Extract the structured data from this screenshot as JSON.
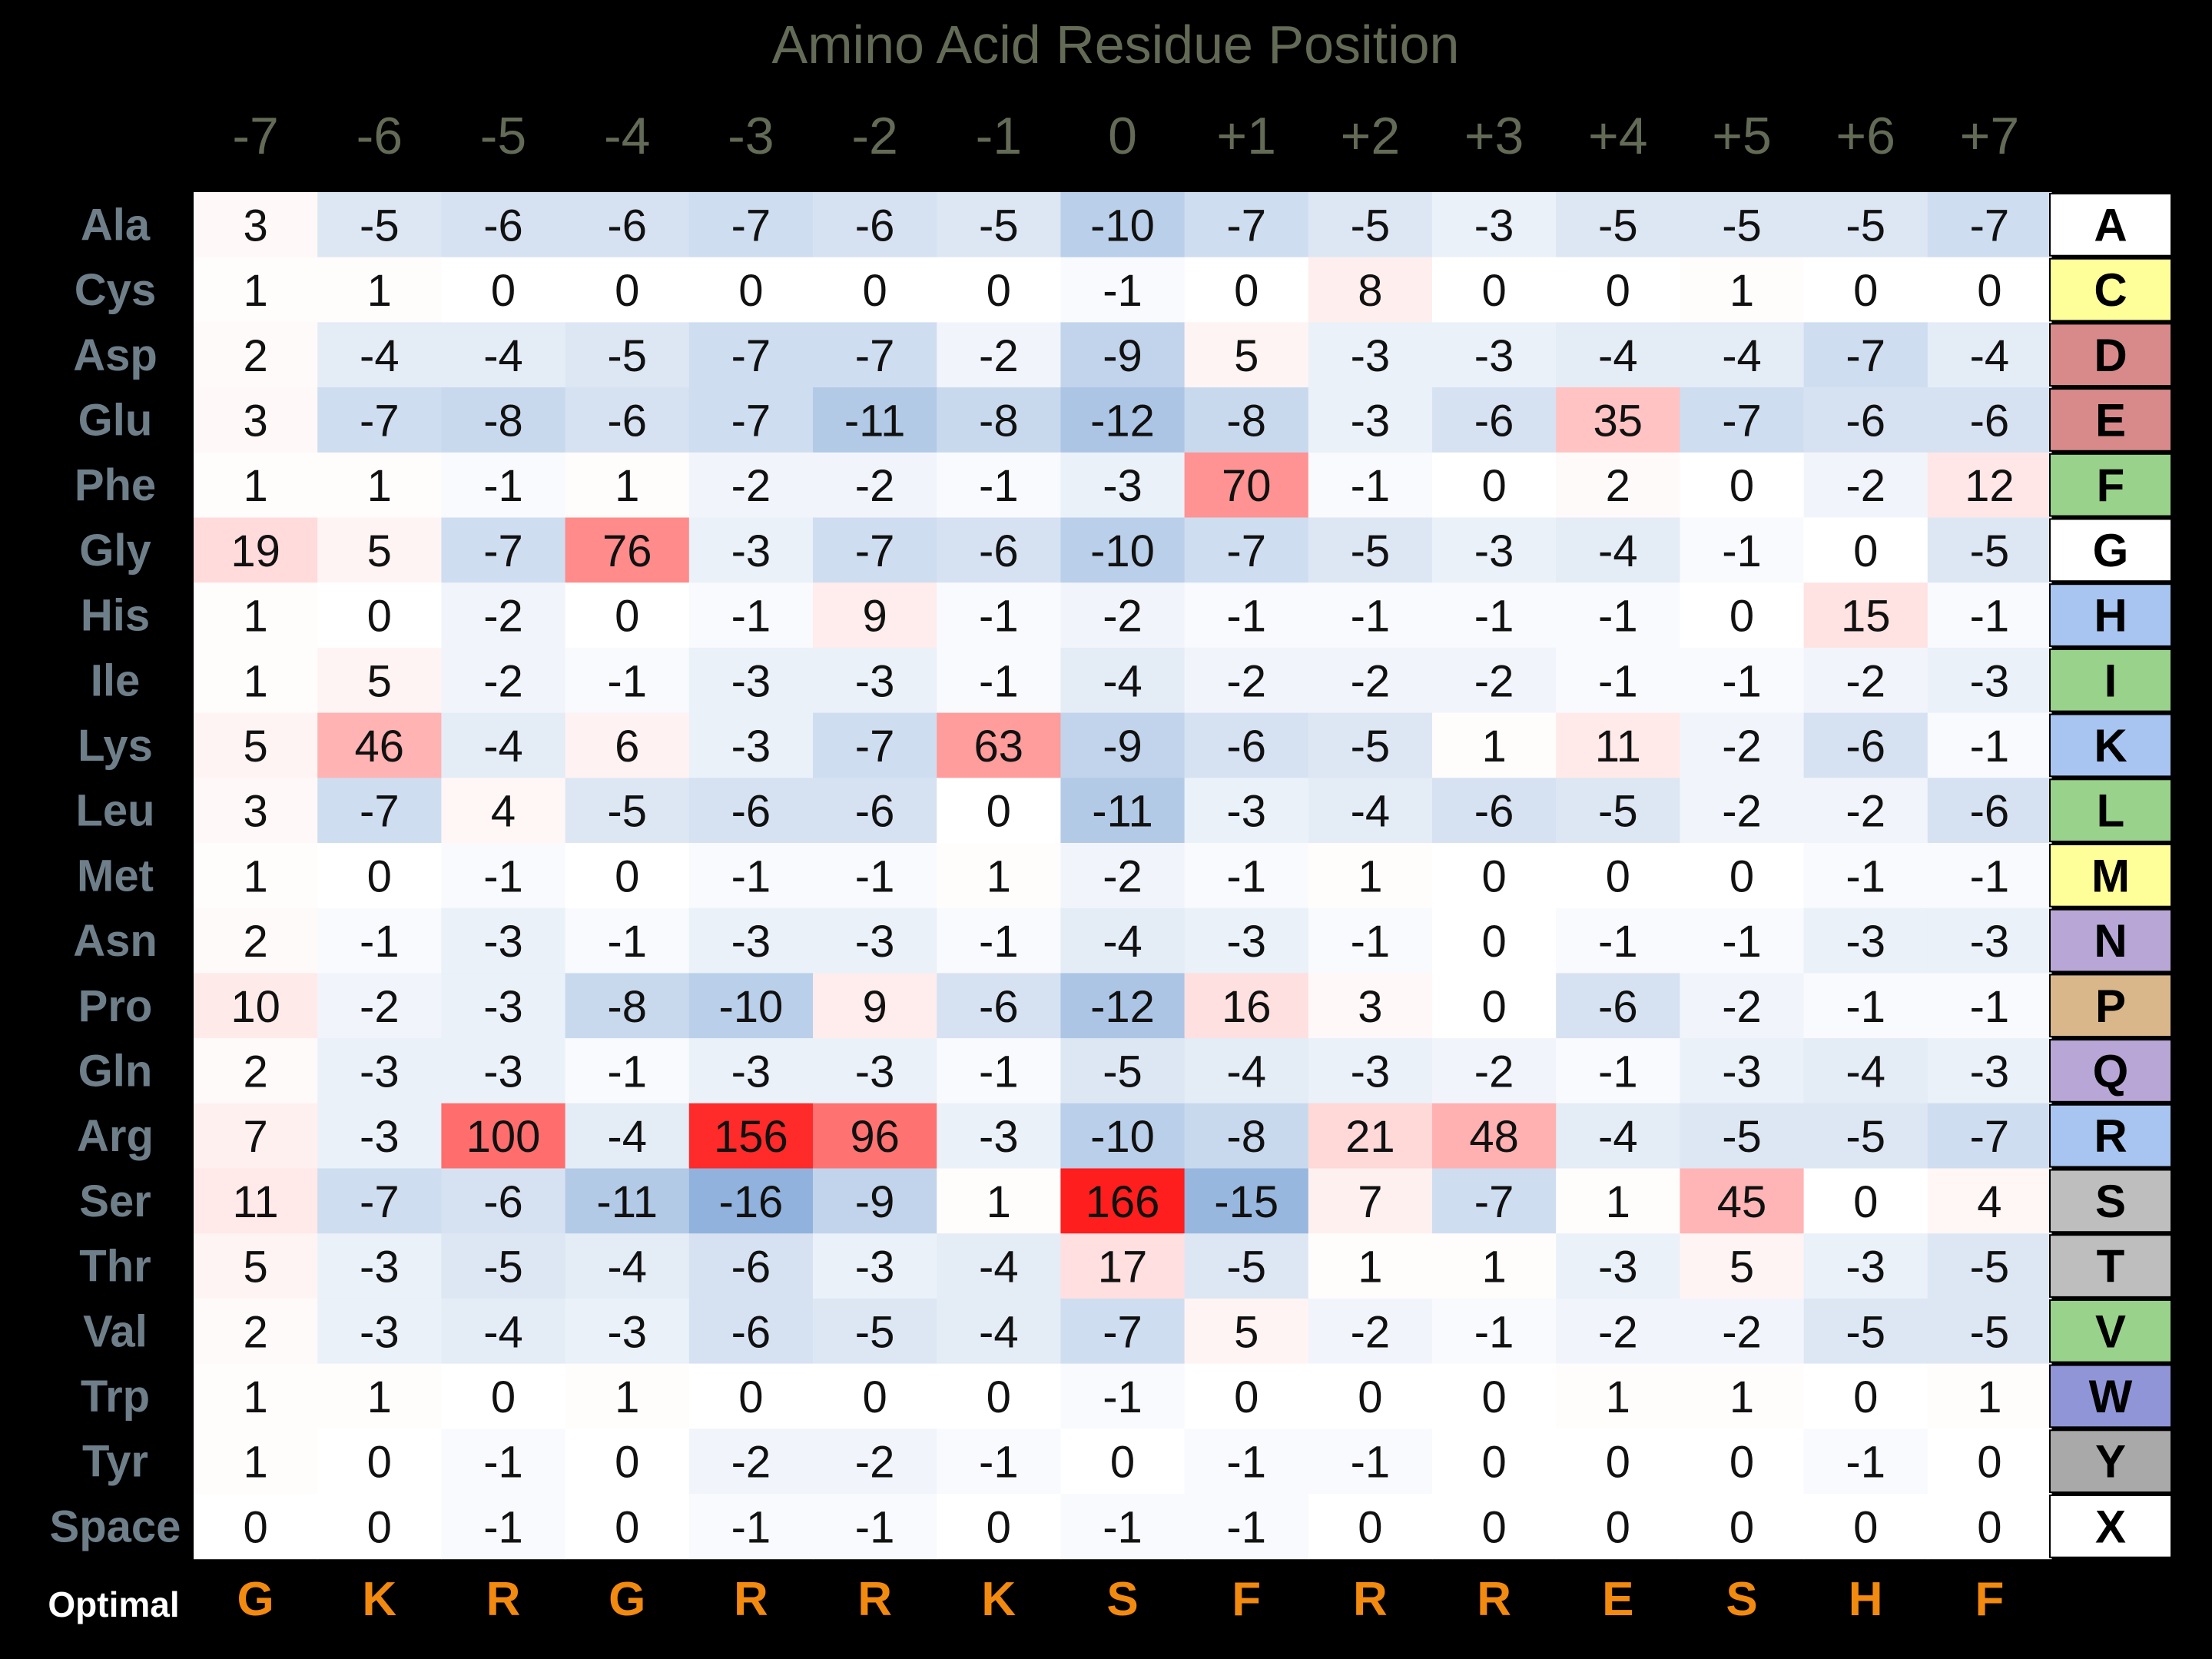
{
  "chart_data": {
    "type": "heatmap",
    "title": "Amino Acid Residue Position",
    "columns": [
      "-7",
      "-6",
      "-5",
      "-4",
      "-3",
      "-2",
      "-1",
      "0",
      "+1",
      "+2",
      "+3",
      "+4",
      "+5",
      "+6",
      "+7"
    ],
    "rows": [
      "Ala",
      "Cys",
      "Asp",
      "Glu",
      "Phe",
      "Gly",
      "His",
      "Ile",
      "Lys",
      "Leu",
      "Met",
      "Asn",
      "Pro",
      "Gln",
      "Arg",
      "Ser",
      "Thr",
      "Val",
      "Trp",
      "Tyr",
      "Space"
    ],
    "codes": [
      "A",
      "C",
      "D",
      "E",
      "F",
      "G",
      "H",
      "I",
      "K",
      "L",
      "M",
      "N",
      "P",
      "Q",
      "R",
      "S",
      "T",
      "V",
      "W",
      "Y",
      "X"
    ],
    "code_colors": [
      "#ffffff",
      "#ffff99",
      "#d88a8a",
      "#d88a8a",
      "#99d28a",
      "#ffffff",
      "#a8c4f0",
      "#99d28a",
      "#a8c4f0",
      "#99d28a",
      "#ffff99",
      "#b7a6d6",
      "#d9b78a",
      "#b7a6d6",
      "#a8c4f0",
      "#bebebe",
      "#bebebe",
      "#99d28a",
      "#8f95d6",
      "#a9a9a9",
      "#ffffff"
    ],
    "values": [
      [
        3,
        -5,
        -6,
        -6,
        -7,
        -6,
        -5,
        -10,
        -7,
        -5,
        -3,
        -5,
        -5,
        -5,
        -7
      ],
      [
        1,
        1,
        0,
        0,
        0,
        0,
        0,
        -1,
        0,
        8,
        0,
        0,
        1,
        0,
        0
      ],
      [
        2,
        -4,
        -4,
        -5,
        -7,
        -7,
        -2,
        -9,
        5,
        -3,
        -3,
        -4,
        -4,
        -7,
        -4
      ],
      [
        3,
        -7,
        -8,
        -6,
        -7,
        -11,
        -8,
        -12,
        -8,
        -3,
        -6,
        35,
        -7,
        -6,
        -6
      ],
      [
        1,
        1,
        -1,
        1,
        -2,
        -2,
        -1,
        -3,
        70,
        -1,
        0,
        2,
        0,
        -2,
        12
      ],
      [
        19,
        5,
        -7,
        76,
        -3,
        -7,
        -6,
        -10,
        -7,
        -5,
        -3,
        -4,
        -1,
        0,
        -5
      ],
      [
        1,
        0,
        -2,
        0,
        -1,
        9,
        -1,
        -2,
        -1,
        -1,
        -1,
        -1,
        0,
        15,
        -1
      ],
      [
        1,
        5,
        -2,
        -1,
        -3,
        -3,
        -1,
        -4,
        -2,
        -2,
        -2,
        -1,
        -1,
        -2,
        -3
      ],
      [
        5,
        46,
        -4,
        6,
        -3,
        -7,
        63,
        -9,
        -6,
        -5,
        1,
        11,
        -2,
        -6,
        -1
      ],
      [
        3,
        -7,
        4,
        -5,
        -6,
        -6,
        0,
        -11,
        -3,
        -4,
        -6,
        -5,
        -2,
        -2,
        -6
      ],
      [
        1,
        0,
        -1,
        0,
        -1,
        -1,
        1,
        -2,
        -1,
        1,
        0,
        0,
        0,
        -1,
        -1
      ],
      [
        2,
        -1,
        -3,
        -1,
        -3,
        -3,
        -1,
        -4,
        -3,
        -1,
        0,
        -1,
        -1,
        -3,
        -3
      ],
      [
        10,
        -2,
        -3,
        -8,
        -10,
        9,
        -6,
        -12,
        16,
        3,
        0,
        -6,
        -2,
        -1,
        -1
      ],
      [
        2,
        -3,
        -3,
        -1,
        -3,
        -3,
        -1,
        -5,
        -4,
        -3,
        -2,
        -1,
        -3,
        -4,
        -3
      ],
      [
        7,
        -3,
        100,
        -4,
        156,
        96,
        -3,
        -10,
        -8,
        21,
        48,
        -4,
        -5,
        -5,
        -7
      ],
      [
        11,
        -7,
        -6,
        -11,
        -16,
        -9,
        1,
        166,
        -15,
        7,
        -7,
        1,
        45,
        0,
        4
      ],
      [
        5,
        -3,
        -5,
        -4,
        -6,
        -3,
        -4,
        17,
        -5,
        1,
        1,
        -3,
        5,
        -3,
        -5
      ],
      [
        2,
        -3,
        -4,
        -3,
        -6,
        -5,
        -4,
        -7,
        5,
        -2,
        -1,
        -2,
        -2,
        -5,
        -5
      ],
      [
        1,
        1,
        0,
        1,
        0,
        0,
        0,
        -1,
        0,
        0,
        0,
        1,
        1,
        0,
        1
      ],
      [
        1,
        0,
        -1,
        0,
        -2,
        -2,
        -1,
        0,
        -1,
        -1,
        0,
        0,
        0,
        -1,
        0
      ],
      [
        0,
        0,
        -1,
        0,
        -1,
        -1,
        0,
        -1,
        -1,
        0,
        0,
        0,
        0,
        0,
        0
      ]
    ],
    "optimal_label": "Optimal",
    "optimal": [
      "G",
      "K",
      "R",
      "G",
      "R",
      "R",
      "K",
      "S",
      "F",
      "R",
      "R",
      "E",
      "S",
      "H",
      "F"
    ]
  }
}
